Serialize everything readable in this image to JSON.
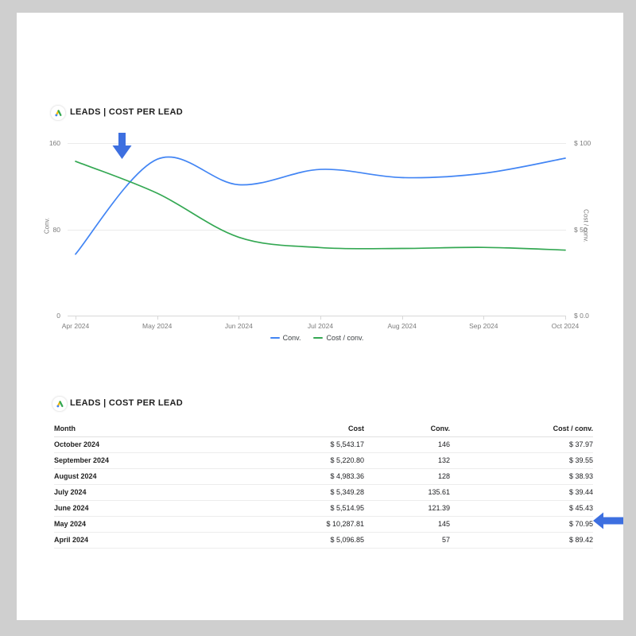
{
  "chart_card": {
    "title": "LEADS | COST PER LEAD",
    "icon": "google-ads-logo",
    "left_axis": {
      "label": "Conv.",
      "ticks": [
        "160",
        "80",
        "0"
      ]
    },
    "right_axis": {
      "label": "Cost / conv.",
      "ticks": [
        "$ 100",
        "$ 50",
        "$ 0.0"
      ]
    },
    "legend": [
      {
        "label": "Conv.",
        "color": "#4285f4"
      },
      {
        "label": "Cost / conv.",
        "color": "#34a853"
      }
    ]
  },
  "chart_data": {
    "type": "line",
    "smooth": true,
    "grid": true,
    "legend_position": "bottom",
    "x": [
      "Apr 2024",
      "May 2024",
      "Jun 2024",
      "Jul 2024",
      "Aug 2024",
      "Sep 2024",
      "Oct 2024"
    ],
    "series": [
      {
        "name": "Conv.",
        "axis": "left",
        "color": "#4285f4",
        "values": [
          57,
          145,
          121.39,
          135.61,
          128,
          132,
          146
        ]
      },
      {
        "name": "Cost / conv.",
        "axis": "right",
        "color": "#34a853",
        "values": [
          89.42,
          70.95,
          45.43,
          39.44,
          38.93,
          39.55,
          37.97
        ]
      }
    ],
    "left_ylabel": "Conv.",
    "right_ylabel": "Cost / conv.",
    "left_ylim": [
      0,
      160
    ],
    "right_ylim": [
      0,
      100
    ]
  },
  "table_card": {
    "title": "LEADS | COST PER LEAD",
    "columns": [
      "Month",
      "Cost",
      "Conv.",
      "Cost / conv."
    ],
    "rows": [
      [
        "October 2024",
        "$ 5,543.17",
        "146",
        "$ 37.97"
      ],
      [
        "September 2024",
        "$ 5,220.80",
        "132",
        "$ 39.55"
      ],
      [
        "August 2024",
        "$ 4,983.36",
        "128",
        "$ 38.93"
      ],
      [
        "July 2024",
        "$ 5,349.28",
        "135.61",
        "$ 39.44"
      ],
      [
        "June 2024",
        "$ 5,514.95",
        "121.39",
        "$ 45.43"
      ],
      [
        "May 2024",
        "$ 10,287.81",
        "145",
        "$ 70.95"
      ],
      [
        "April 2024",
        "$ 5,096.85",
        "57",
        "$ 89.42"
      ]
    ]
  },
  "annotations": {
    "arrow_color": "#3d6fe0"
  }
}
